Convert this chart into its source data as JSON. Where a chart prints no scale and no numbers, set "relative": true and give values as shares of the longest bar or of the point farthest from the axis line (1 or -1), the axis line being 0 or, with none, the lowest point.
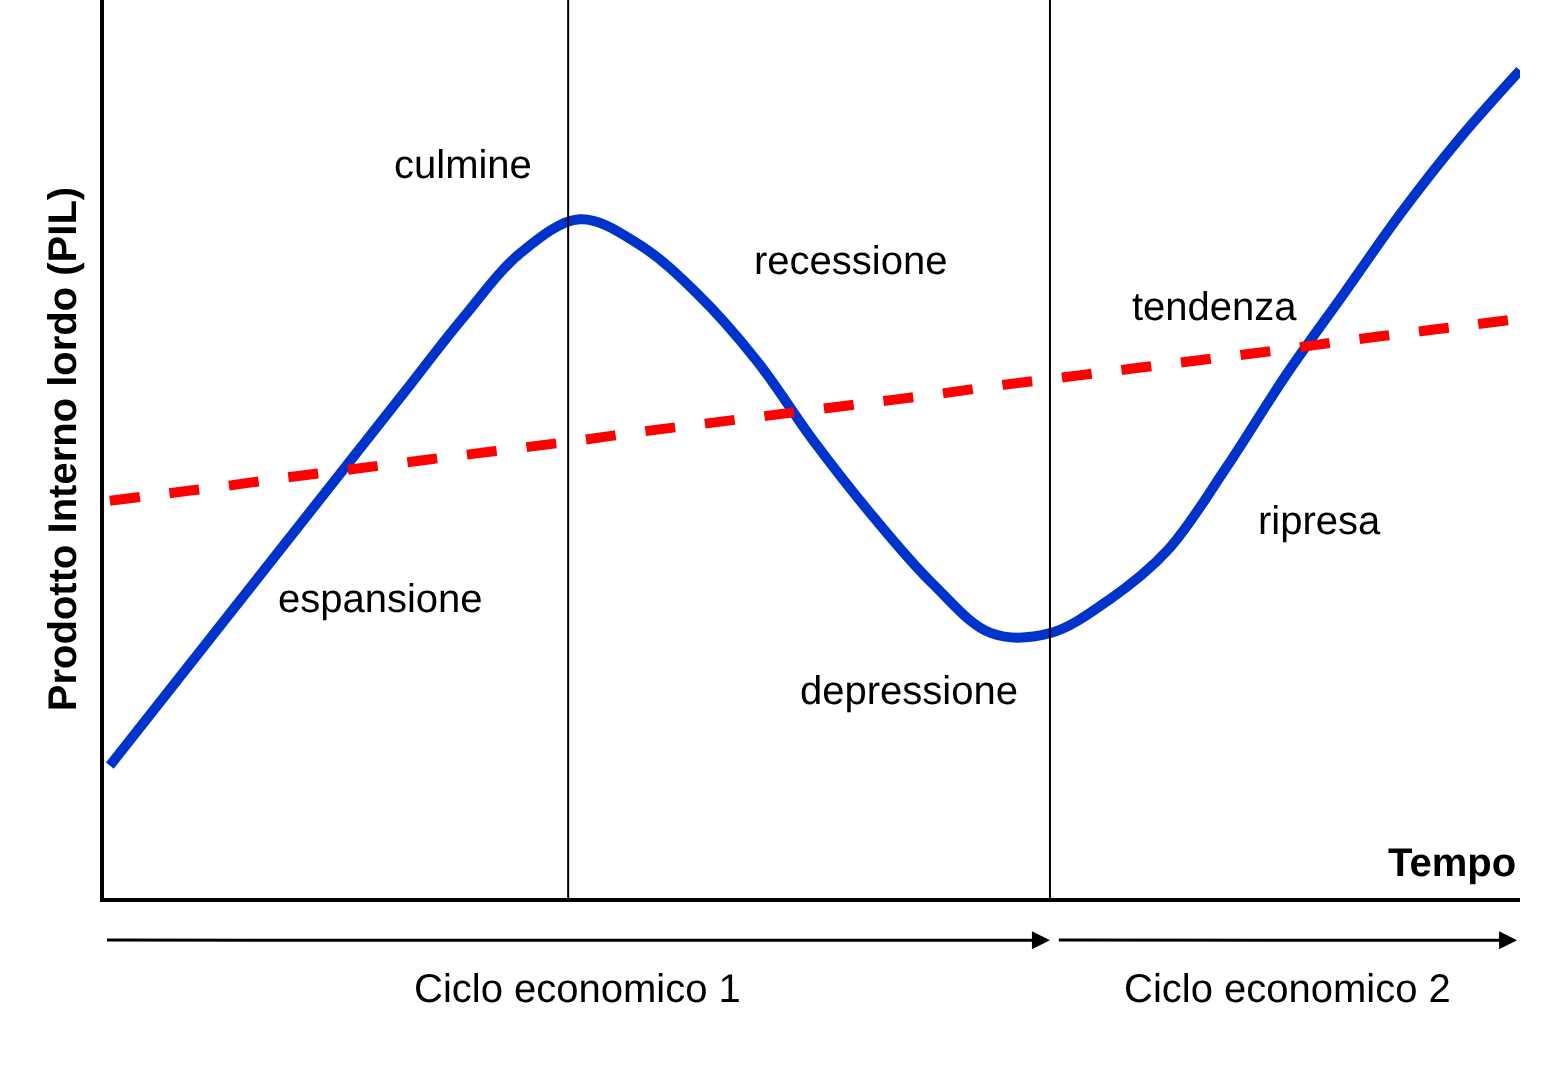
{
  "chart_data": {
    "type": "line",
    "relative": true,
    "xlabel": "Tempo",
    "ylabel": "Prodotto Interno lordo (PIL)",
    "categories": [
      null,
      null,
      null,
      null,
      null,
      null,
      null,
      null,
      null,
      null,
      null,
      null,
      null,
      null,
      null,
      null,
      null,
      null,
      null,
      null,
      null,
      null,
      null,
      null,
      null
    ],
    "series": [
      {
        "color": "#0033cc",
        "line_style": "solid",
        "values": [
          0.16,
          0.25,
          0.34,
          0.43,
          0.52,
          0.61,
          0.7,
          0.78,
          0.82,
          0.79,
          0.73,
          0.65,
          0.55,
          0.46,
          0.38,
          0.32,
          0.32,
          0.36,
          0.42,
          0.52,
          0.63,
          0.73,
          0.83,
          0.92,
          1.0
        ]
      },
      {
        "color": "#ff0000",
        "line_style": "dashed",
        "values": [
          0.48,
          0.489,
          0.498,
          0.508,
          0.517,
          0.526,
          0.535,
          0.544,
          0.553,
          0.563,
          0.572,
          0.581,
          0.59,
          0.599,
          0.608,
          0.618,
          0.627,
          0.636,
          0.645,
          0.654,
          0.663,
          0.673,
          0.682,
          0.691,
          0.7
        ]
      }
    ],
    "annotations": [
      "culmine",
      "recessione",
      "tendenza",
      "ripresa",
      "espansione",
      "depressione",
      "Ciclo economico 1",
      "Ciclo economico 2"
    ],
    "legend": false,
    "marker": "none"
  }
}
